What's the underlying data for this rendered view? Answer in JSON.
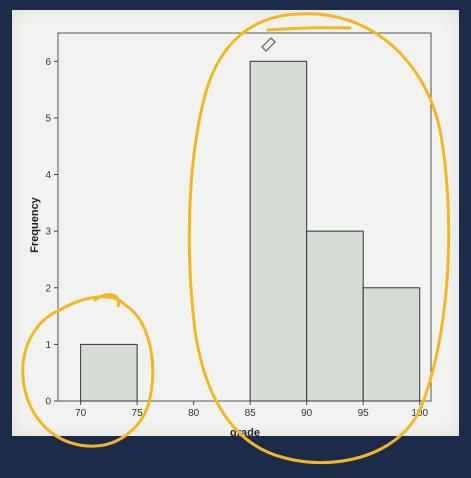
{
  "chart_data": {
    "type": "bar",
    "subtype": "histogram",
    "bins": [
      {
        "from": 70,
        "to": 75,
        "count": 1
      },
      {
        "from": 75,
        "to": 80,
        "count": 0
      },
      {
        "from": 80,
        "to": 85,
        "count": 0
      },
      {
        "from": 85,
        "to": 90,
        "count": 6
      },
      {
        "from": 90,
        "to": 95,
        "count": 3
      },
      {
        "from": 95,
        "to": 100,
        "count": 2
      }
    ],
    "xlabel": "grade",
    "ylabel": "Frequency",
    "xlim": [
      68,
      101
    ],
    "ylim": [
      0,
      6.5
    ],
    "x_ticks": [
      70,
      75,
      80,
      85,
      90,
      95,
      100
    ],
    "y_ticks": [
      0,
      1,
      2,
      3,
      4,
      5,
      6
    ],
    "grid": false,
    "legend": "none",
    "bar_color": "#d6dcd6",
    "bar_edge_color": "#333333",
    "annotation_color": "#f2b824",
    "annotations": [
      "circle around 70-75 bin",
      "large circle around 85-100 bins"
    ]
  }
}
